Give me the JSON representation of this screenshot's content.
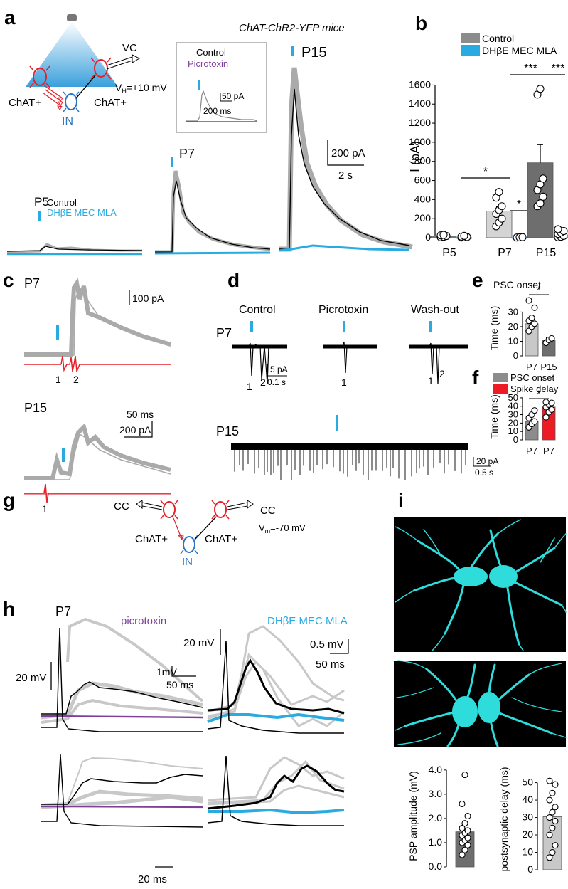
{
  "panels": {
    "a": "a",
    "b": "b",
    "c": "c",
    "d": "d",
    "e": "e",
    "f": "f",
    "g": "g",
    "h": "h",
    "i": "i"
  },
  "panel_a": {
    "mouse_line": "ChAT-ChR2-YFP mice",
    "vc": "VC",
    "vh_main": "V",
    "vh_sub": "H",
    "vh_value": "=+10 mV",
    "chat_left": "ChAT+",
    "chat_right": "ChAT+",
    "in_label": "IN",
    "inset": {
      "control": "Control",
      "drug": "Picrotoxin",
      "scale_amp": "50 pA",
      "scale_time": "200 ms"
    },
    "ages": [
      "P5",
      "P7",
      "P15"
    ],
    "legend_control": "Control",
    "legend_drug": "DHβE MEC MLA",
    "scale_amp": "200 pA",
    "scale_time": "2 s"
  },
  "panel_b": {
    "legend": [
      {
        "label": "Control",
        "color": "#8c8c8c"
      },
      {
        "label": "DHβE MEC MLA",
        "color": "#29abe2"
      }
    ],
    "sig_marks": [
      "*",
      "*",
      "***",
      "***"
    ]
  },
  "chart_data": [
    {
      "panel": "b",
      "type": "bar",
      "categories": [
        "P5",
        "P7",
        "P15"
      ],
      "ylabel": "I (pA)",
      "ylim": [
        0,
        1700
      ],
      "yticks": [
        0,
        200,
        400,
        600,
        800,
        1000,
        1200,
        1400,
        1600
      ],
      "series": [
        {
          "name": "Control",
          "values": [
            15,
            280,
            785
          ],
          "errors": [
            8,
            45,
            190
          ],
          "points": [
            [
              5,
              10,
              18,
              25,
              30
            ],
            [
              120,
              160,
              200,
              250,
              290,
              330,
              420,
              480
            ],
            [
              330,
              360,
              430,
              500,
              560,
              620,
              1500,
              1560
            ]
          ]
        },
        {
          "name": "DHβE MEC MLA",
          "values": [
            5,
            5,
            8
          ],
          "points": [
            [
              2,
              5,
              8,
              12,
              20
            ],
            [
              2,
              4,
              6
            ],
            [
              5,
              10,
              20,
              40,
              55,
              70,
              90
            ]
          ]
        }
      ],
      "bar_colors": [
        "#8c8c8c",
        "#d4d4d4",
        "#6e6e6e"
      ]
    },
    {
      "panel": "e",
      "type": "bar",
      "title": "PSC onset",
      "categories": [
        "P7",
        "P15"
      ],
      "ylabel": "Time (ms)",
      "ylim": [
        0,
        38
      ],
      "yticks": [
        0,
        10,
        20,
        30
      ],
      "values": [
        22,
        11
      ],
      "errors": [
        3,
        1.5
      ],
      "points": [
        [
          17,
          20,
          22,
          24,
          26,
          33,
          38
        ],
        [
          9,
          11,
          12
        ]
      ],
      "bar_colors": [
        "#c8c8c8",
        "#6e6e6e"
      ],
      "sig_mark": "*"
    },
    {
      "panel": "f",
      "type": "bar",
      "categories": [
        "P7",
        "P7"
      ],
      "ylabel": "Time (ms)",
      "ylim": [
        0,
        55
      ],
      "yticks": [
        0,
        10,
        20,
        30,
        40,
        50
      ],
      "legend": [
        {
          "label": "PSC onset",
          "color": "#8c8c8c"
        },
        {
          "label": "Spike delay",
          "color": "#ed1c24"
        }
      ],
      "values": [
        22,
        39
      ],
      "errors": [
        3,
        3
      ],
      "points": [
        [
          15,
          19,
          22,
          26,
          30,
          35
        ],
        [
          27,
          33,
          36,
          39,
          42,
          44,
          45
        ]
      ],
      "bar_colors": [
        "#8c8c8c",
        "#ed1c24"
      ],
      "sig_mark": "*"
    },
    {
      "panel": "i-left",
      "type": "bar",
      "categories": [
        ""
      ],
      "ylabel": "PSP amplitude (mV)",
      "ylim": [
        0,
        4.2
      ],
      "yticks": [
        0.0,
        1.0,
        2.0,
        3.0,
        4.0
      ],
      "yticklabels": [
        "0.0",
        "1.0",
        "2.0",
        "3.0",
        "4.0"
      ],
      "values": [
        1.45
      ],
      "points": [
        [
          0.5,
          0.7,
          0.9,
          1.0,
          1.1,
          1.2,
          1.3,
          1.4,
          1.5,
          1.6,
          1.8,
          2.1,
          2.6,
          3.8
        ]
      ],
      "bar_colors": [
        "#6e6e6e"
      ]
    },
    {
      "panel": "i-right",
      "type": "bar",
      "categories": [
        ""
      ],
      "ylabel": "postsynaptic delay (ms)",
      "ylim": [
        0,
        58
      ],
      "yticks": [
        0,
        10,
        20,
        30,
        40,
        50
      ],
      "values": [
        30.5
      ],
      "points": [
        [
          7,
          10,
          14,
          20,
          24,
          28,
          30,
          33,
          36,
          40,
          44,
          49,
          51
        ]
      ],
      "bar_colors": [
        "#c8c8c8"
      ]
    }
  ],
  "panel_c": {
    "age_top": "P7",
    "age_bottom": "P15",
    "scale_amp_top": "100 pA",
    "scale_time": "50 ms",
    "scale_amp_bottom": "200 pA",
    "spike_labels_top": [
      "1",
      "2"
    ],
    "spike_labels_bottom": [
      "1"
    ]
  },
  "panel_d": {
    "conditions": [
      "Control",
      "Picrotoxin",
      "Wash-out"
    ],
    "age_top": "P7",
    "age_bottom": "P15",
    "scale_amp_top": "5 pA",
    "scale_time_top": "0.1 s",
    "scale_amp_bottom": "20 pA",
    "scale_time_bottom": "0.5 s",
    "peak_labels": [
      "1",
      "2",
      "1",
      "1",
      "2"
    ]
  },
  "panel_g": {
    "cc_left": "CC",
    "cc_right": "CC",
    "chat_left": "ChAT+",
    "chat_right": "ChAT+",
    "vm_main": "V",
    "vm_sub": "m",
    "vm_value": "=-70 mV",
    "in_label": "IN"
  },
  "panel_h": {
    "age": "P7",
    "drug_left": "picrotoxin",
    "drug_right": "DHβE MEC MLA",
    "scale_spike_left": "20 mV",
    "scale_psp_left": "1mV",
    "scale_time_left": "50 ms",
    "scale_spike_right": "20 mV",
    "scale_psp_right": "0.5 mV",
    "scale_time_right": "50 ms",
    "scale_time_bottom": "20 ms",
    "colors": {
      "control": "#000000",
      "trials": "#c0c0c0",
      "picrotoxin": "#7e3f98",
      "blocker": "#29abe2"
    }
  },
  "colors": {
    "chat_red": "#e8202a",
    "in_blue": "#2c76c0",
    "light_blue": "#29abe2",
    "purple": "#7e3f98",
    "neuron_cyan": "#2fdcdc"
  }
}
